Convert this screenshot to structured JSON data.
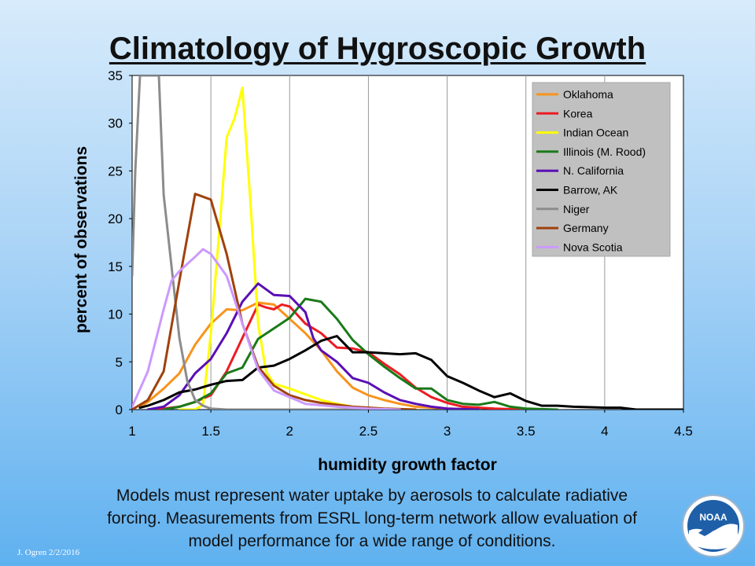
{
  "slide": {
    "title": "Climatology of Hygroscopic Growth",
    "caption_lines": [
      "Models must represent water uptake by aerosols to calculate radiative",
      "forcing.  Measurements from ESRL long-term network allow evaluation of",
      "model performance for a wide range of conditions."
    ],
    "credit": "J. Ogren  2/2/2016",
    "logo_text": "NOAA"
  },
  "chart_data": {
    "type": "line",
    "title": "Climatology of Hygroscopic Growth",
    "xlabel": "humidity growth factor",
    "ylabel": "percent of observations",
    "xlim": [
      1,
      4.5
    ],
    "ylim": [
      0,
      35
    ],
    "xticks": [
      1,
      1.5,
      2,
      2.5,
      3,
      3.5,
      4,
      4.5
    ],
    "xtick_labels": [
      "1",
      "1.5",
      "2",
      "2.5",
      "3",
      "3.5",
      "4",
      "4.5"
    ],
    "yticks": [
      0,
      5,
      10,
      15,
      20,
      25,
      30,
      35
    ],
    "grid": "vertical",
    "legend_position": "top-right",
    "series": [
      {
        "name": "Oklahoma",
        "color": "#f7941d",
        "points": [
          [
            1.05,
            0.3
          ],
          [
            1.1,
            0.8
          ],
          [
            1.2,
            2.2
          ],
          [
            1.3,
            3.8
          ],
          [
            1.4,
            6.8
          ],
          [
            1.5,
            9
          ],
          [
            1.6,
            10.5
          ],
          [
            1.7,
            10.4
          ],
          [
            1.8,
            11.2
          ],
          [
            1.9,
            11
          ],
          [
            2.0,
            9.5
          ],
          [
            2.1,
            8
          ],
          [
            2.2,
            6.2
          ],
          [
            2.3,
            4
          ],
          [
            2.4,
            2.3
          ],
          [
            2.5,
            1.5
          ],
          [
            2.6,
            1
          ],
          [
            2.7,
            0.6
          ],
          [
            2.8,
            0.3
          ],
          [
            3.0,
            0.1
          ],
          [
            3.2,
            0
          ]
        ]
      },
      {
        "name": "Korea",
        "color": "#ed1c24",
        "points": [
          [
            1.1,
            0
          ],
          [
            1.2,
            0.1
          ],
          [
            1.3,
            0.3
          ],
          [
            1.4,
            0.8
          ],
          [
            1.5,
            1.5
          ],
          [
            1.6,
            4
          ],
          [
            1.7,
            7.5
          ],
          [
            1.8,
            11
          ],
          [
            1.85,
            10.7
          ],
          [
            1.9,
            10.5
          ],
          [
            1.95,
            11
          ],
          [
            2.0,
            10.8
          ],
          [
            2.1,
            9
          ],
          [
            2.2,
            8
          ],
          [
            2.3,
            6.5
          ],
          [
            2.4,
            6.4
          ],
          [
            2.5,
            6
          ],
          [
            2.6,
            4.8
          ],
          [
            2.7,
            3.7
          ],
          [
            2.8,
            2.3
          ],
          [
            2.9,
            1.3
          ],
          [
            3.0,
            0.7
          ],
          [
            3.1,
            0.3
          ],
          [
            3.3,
            0.1
          ],
          [
            3.5,
            0
          ]
        ]
      },
      {
        "name": "Indian Ocean",
        "color": "#ffff00",
        "points": [
          [
            1.3,
            0
          ],
          [
            1.35,
            0
          ],
          [
            1.4,
            0
          ],
          [
            1.45,
            0.5
          ],
          [
            1.5,
            8
          ],
          [
            1.55,
            18
          ],
          [
            1.6,
            28.5
          ],
          [
            1.65,
            30.5
          ],
          [
            1.7,
            33.7
          ],
          [
            1.75,
            22
          ],
          [
            1.8,
            9
          ],
          [
            1.85,
            4
          ],
          [
            1.9,
            2.7
          ],
          [
            2.0,
            2.2
          ],
          [
            2.1,
            1.6
          ],
          [
            2.2,
            1
          ],
          [
            2.3,
            0.6
          ],
          [
            2.4,
            0.3
          ],
          [
            2.6,
            0.1
          ],
          [
            2.8,
            0
          ]
        ]
      },
      {
        "name": "Illinois (M. Rood)",
        "color": "#1a7a1a",
        "points": [
          [
            1.2,
            0
          ],
          [
            1.3,
            0.3
          ],
          [
            1.4,
            0.8
          ],
          [
            1.5,
            1.7
          ],
          [
            1.6,
            3.8
          ],
          [
            1.7,
            4.4
          ],
          [
            1.8,
            7.4
          ],
          [
            1.9,
            8.5
          ],
          [
            2.0,
            9.6
          ],
          [
            2.1,
            11.6
          ],
          [
            2.2,
            11.3
          ],
          [
            2.3,
            9.5
          ],
          [
            2.4,
            7.3
          ],
          [
            2.5,
            5.8
          ],
          [
            2.6,
            4.5
          ],
          [
            2.7,
            3.3
          ],
          [
            2.8,
            2.2
          ],
          [
            2.9,
            2.2
          ],
          [
            3.0,
            1
          ],
          [
            3.1,
            0.6
          ],
          [
            3.2,
            0.5
          ],
          [
            3.3,
            0.8
          ],
          [
            3.4,
            0.3
          ],
          [
            3.5,
            0.1
          ],
          [
            3.7,
            0
          ]
        ]
      },
      {
        "name": "N. California",
        "color": "#5a0fb4",
        "points": [
          [
            1.1,
            0
          ],
          [
            1.2,
            0.3
          ],
          [
            1.3,
            1.5
          ],
          [
            1.4,
            3.8
          ],
          [
            1.5,
            5.3
          ],
          [
            1.6,
            8
          ],
          [
            1.7,
            11.3
          ],
          [
            1.8,
            13.2
          ],
          [
            1.9,
            12
          ],
          [
            2.0,
            11.9
          ],
          [
            2.1,
            10.2
          ],
          [
            2.15,
            7.5
          ],
          [
            2.2,
            6.2
          ],
          [
            2.3,
            5
          ],
          [
            2.4,
            3.3
          ],
          [
            2.5,
            2.8
          ],
          [
            2.6,
            1.8
          ],
          [
            2.7,
            1
          ],
          [
            2.8,
            0.6
          ],
          [
            2.9,
            0.3
          ],
          [
            3.0,
            0.1
          ],
          [
            3.2,
            0
          ]
        ]
      },
      {
        "name": "Barrow, AK",
        "color": "#000000",
        "points": [
          [
            1.05,
            0.2
          ],
          [
            1.1,
            0.4
          ],
          [
            1.2,
            1
          ],
          [
            1.3,
            1.8
          ],
          [
            1.4,
            2.1
          ],
          [
            1.5,
            2.6
          ],
          [
            1.6,
            3
          ],
          [
            1.7,
            3.1
          ],
          [
            1.8,
            4.4
          ],
          [
            1.9,
            4.6
          ],
          [
            2.0,
            5.3
          ],
          [
            2.1,
            6.2
          ],
          [
            2.2,
            7.2
          ],
          [
            2.3,
            7.7
          ],
          [
            2.4,
            6
          ],
          [
            2.5,
            6
          ],
          [
            2.6,
            5.9
          ],
          [
            2.7,
            5.8
          ],
          [
            2.8,
            5.9
          ],
          [
            2.9,
            5.2
          ],
          [
            3.0,
            3.5
          ],
          [
            3.1,
            2.8
          ],
          [
            3.2,
            2
          ],
          [
            3.3,
            1.3
          ],
          [
            3.4,
            1.7
          ],
          [
            3.5,
            0.9
          ],
          [
            3.6,
            0.4
          ],
          [
            3.7,
            0.4
          ],
          [
            3.8,
            0.3
          ],
          [
            4.0,
            0.2
          ],
          [
            4.1,
            0.2
          ],
          [
            4.2,
            0
          ],
          [
            4.5,
            0
          ]
        ]
      },
      {
        "name": "Niger",
        "color": "#8c8c8c",
        "points": [
          [
            1.0,
            14
          ],
          [
            1.02,
            25
          ],
          [
            1.05,
            35
          ],
          [
            1.17,
            35
          ],
          [
            1.2,
            22.5
          ],
          [
            1.25,
            15
          ],
          [
            1.3,
            7.5
          ],
          [
            1.35,
            3
          ],
          [
            1.4,
            1
          ],
          [
            1.45,
            0.4
          ],
          [
            1.5,
            0.1
          ],
          [
            1.6,
            0
          ],
          [
            2.5,
            0
          ]
        ]
      },
      {
        "name": "Germany",
        "color": "#a0410d",
        "points": [
          [
            1.0,
            0
          ],
          [
            1.1,
            1
          ],
          [
            1.2,
            4
          ],
          [
            1.3,
            13.5
          ],
          [
            1.4,
            22.6
          ],
          [
            1.5,
            22
          ],
          [
            1.6,
            16.3
          ],
          [
            1.7,
            9
          ],
          [
            1.8,
            4.5
          ],
          [
            1.9,
            2.5
          ],
          [
            2.0,
            1.5
          ],
          [
            2.1,
            1
          ],
          [
            2.2,
            0.7
          ],
          [
            2.3,
            0.5
          ],
          [
            2.4,
            0.3
          ],
          [
            2.6,
            0.1
          ],
          [
            2.8,
            0
          ]
        ]
      },
      {
        "name": "Nova Scotia",
        "color": "#cc99ff",
        "points": [
          [
            1.0,
            0.3
          ],
          [
            1.1,
            4
          ],
          [
            1.2,
            10.5
          ],
          [
            1.25,
            13.5
          ],
          [
            1.3,
            14.5
          ],
          [
            1.4,
            16
          ],
          [
            1.45,
            16.8
          ],
          [
            1.5,
            16.3
          ],
          [
            1.6,
            14
          ],
          [
            1.7,
            9
          ],
          [
            1.8,
            4.2
          ],
          [
            1.9,
            2
          ],
          [
            2.0,
            1.3
          ],
          [
            2.1,
            0.6
          ],
          [
            2.3,
            0.3
          ],
          [
            2.5,
            0.1
          ],
          [
            2.7,
            0
          ]
        ]
      }
    ]
  }
}
